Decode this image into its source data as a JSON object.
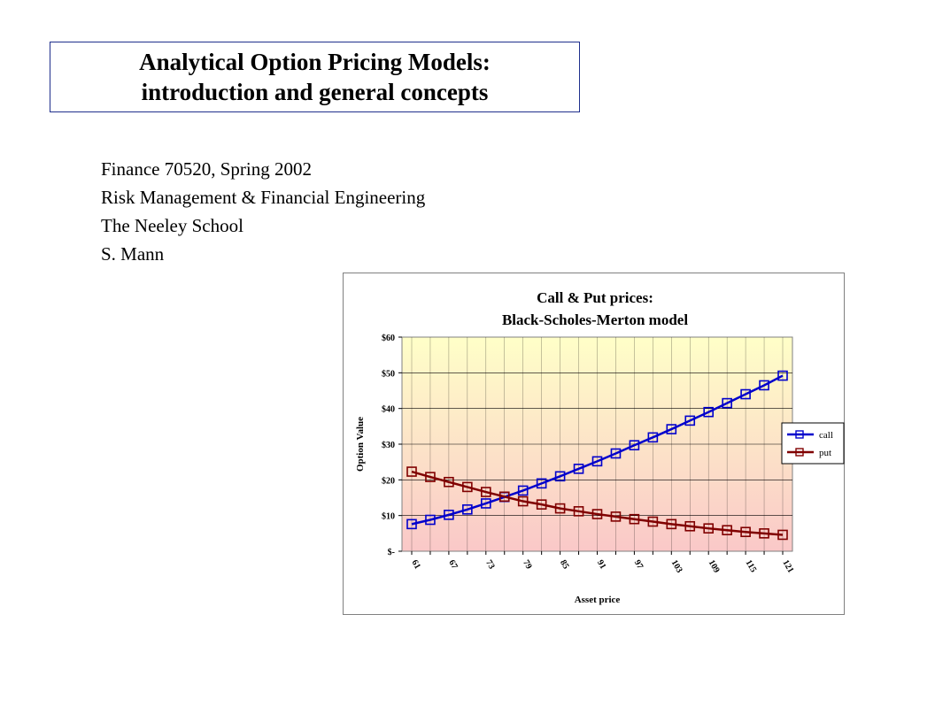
{
  "slide": {
    "title_line1": "Analytical Option Pricing Models:",
    "title_line2": "introduction and general concepts",
    "subtitle_lines": [
      "Finance 70520, Spring 2002",
      "Risk Management & Financial Engineering",
      "The Neeley School",
      "S. Mann"
    ]
  },
  "colors": {
    "call": "#0000cc",
    "put": "#800000",
    "plot_top": "#ffffc8",
    "plot_bottom": "#fac8c8",
    "frame_border": "#1f2f8c"
  },
  "chart_data": {
    "type": "line",
    "title": "Call & Put prices:",
    "subtitle": "Black-Scholes-Merton model",
    "xlabel": "Asset price",
    "ylabel": "Option Value",
    "ylim": [
      0,
      60
    ],
    "y_ticks": [
      "$-",
      "$10",
      "$20",
      "$30",
      "$40",
      "$50",
      "$60"
    ],
    "x_tick_labels": [
      "61",
      "67",
      "73",
      "79",
      "85",
      "91",
      "97",
      "103",
      "109",
      "115",
      "121"
    ],
    "x": [
      61,
      64,
      67,
      70,
      73,
      76,
      79,
      82,
      85,
      88,
      91,
      94,
      97,
      100,
      103,
      106,
      109,
      112,
      115,
      118,
      121
    ],
    "series": [
      {
        "name": "call",
        "values": [
          7.6,
          8.8,
          10.2,
          11.7,
          13.4,
          15.2,
          17.0,
          19.0,
          21.0,
          23.1,
          25.2,
          27.4,
          29.7,
          31.9,
          34.2,
          36.6,
          39.0,
          41.5,
          44.0,
          46.5,
          49.2
        ]
      },
      {
        "name": "put",
        "values": [
          22.3,
          20.8,
          19.4,
          18.0,
          16.6,
          15.3,
          14.0,
          13.1,
          12.0,
          11.2,
          10.4,
          9.7,
          9.0,
          8.3,
          7.6,
          7.0,
          6.4,
          5.9,
          5.4,
          5.0,
          4.6
        ]
      }
    ],
    "grid": true,
    "legend": "right"
  }
}
